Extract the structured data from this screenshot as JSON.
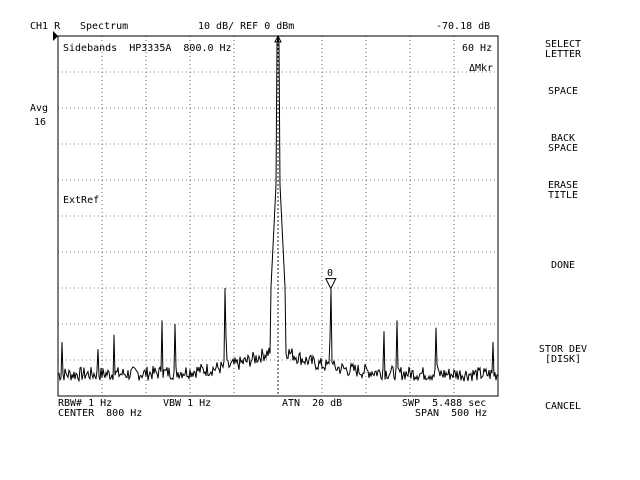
{
  "header": {
    "channel": "CH1 R",
    "measurement": "Spectrum",
    "scale": "10 dB/ REF 0 dBm",
    "marker_value": "-70.18 dB"
  },
  "left_annotations": {
    "avg_label": "Avg",
    "avg_count": "16"
  },
  "graticule_text": {
    "title": "Sidebands  HP3335A  800.0 Hz",
    "marker_offset": "60 Hz",
    "marker_mode": "ΔMkr",
    "ext_ref": "ExtRef",
    "ref_marker_label": "0"
  },
  "footer": {
    "rbw": "RBW# 1 Hz",
    "vbw": "VBW 1 Hz",
    "atn": "ATN  20 dB",
    "swp": "SWP  5.488 sec",
    "center": "CENTER  800 Hz",
    "span": "SPAN  500 Hz"
  },
  "softkeys": [
    {
      "label": "SELECT\nLETTER"
    },
    {
      "label": "SPACE"
    },
    {
      "label": "BACK\nSPACE"
    },
    {
      "label": "ERASE\nTITLE"
    },
    {
      "label": "DONE"
    },
    {
      "label": "STOR DEV\n[DISK]"
    },
    {
      "label": "CANCEL"
    }
  ],
  "chart_data": {
    "type": "line",
    "x_range": [
      550,
      1050
    ],
    "y_range": [
      -100,
      0
    ],
    "grid": true,
    "series": [
      {
        "carrier": {
          "x": 800,
          "y": 0
        },
        "reference_marker": {
          "x": 860,
          "y": -70.18
        },
        "spurs": [
          {
            "x": 555,
            "y": -85
          },
          {
            "x": 595,
            "y": -87
          },
          {
            "x": 614,
            "y": -83
          },
          {
            "x": 668,
            "y": -79
          },
          {
            "x": 683,
            "y": -80
          },
          {
            "x": 740,
            "y": -70
          },
          {
            "x": 860,
            "y": -70.18
          },
          {
            "x": 920,
            "y": -82
          },
          {
            "x": 935,
            "y": -79
          },
          {
            "x": 980,
            "y": -81
          },
          {
            "x": 1044,
            "y": -85
          }
        ],
        "noise_floor": -94
      }
    ]
  }
}
